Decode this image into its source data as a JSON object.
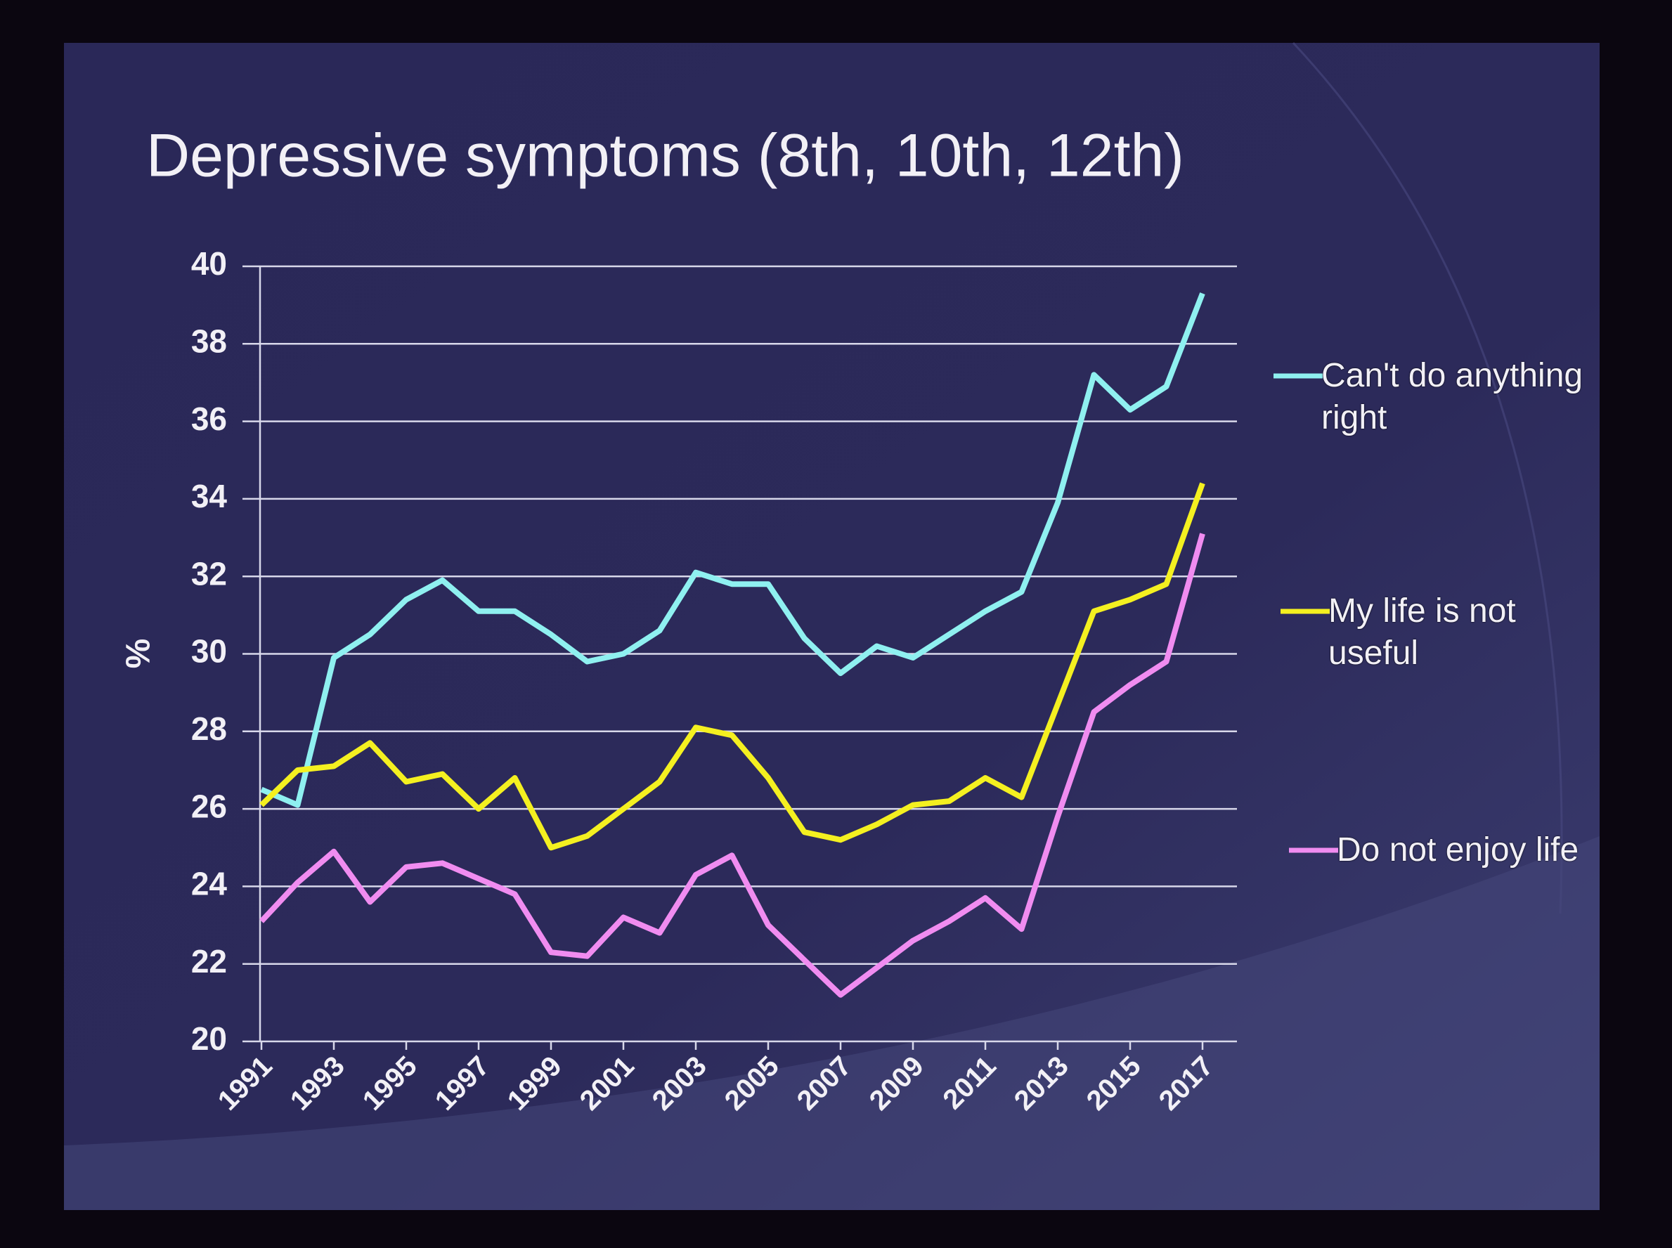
{
  "chart_data": {
    "type": "line",
    "title": "Depressive symptoms (8th, 10th, 12th)",
    "y_label": "%",
    "x": [
      1991,
      1992,
      1993,
      1994,
      1995,
      1996,
      1997,
      1998,
      1999,
      2000,
      2001,
      2002,
      2003,
      2004,
      2005,
      2006,
      2007,
      2008,
      2009,
      2010,
      2011,
      2012,
      2013,
      2014,
      2015,
      2016,
      2017
    ],
    "xlim": [
      1991,
      2017
    ],
    "xticks": [
      1991,
      1993,
      1995,
      1997,
      1999,
      2001,
      2003,
      2005,
      2007,
      2009,
      2011,
      2013,
      2015,
      2017
    ],
    "ylim": [
      20,
      40
    ],
    "yticks": [
      20,
      22,
      24,
      26,
      28,
      30,
      32,
      34,
      36,
      38,
      40
    ],
    "grid": true,
    "series": [
      {
        "name": "Can't do anything right",
        "color": "#8ff0f0",
        "values": [
          26.5,
          26.1,
          29.9,
          30.5,
          31.4,
          31.9,
          31.1,
          31.1,
          30.5,
          29.8,
          30.0,
          30.6,
          32.1,
          31.8,
          31.8,
          30.4,
          29.5,
          30.2,
          29.9,
          30.5,
          31.1,
          31.6,
          33.9,
          37.2,
          36.3,
          36.9,
          39.3
        ]
      },
      {
        "name": "My life is not useful",
        "color": "#f4f020",
        "values": [
          26.1,
          27.0,
          27.1,
          27.7,
          26.7,
          26.9,
          26.0,
          26.8,
          25.0,
          25.3,
          26.0,
          26.7,
          28.1,
          27.9,
          26.8,
          25.4,
          25.2,
          25.6,
          26.1,
          26.2,
          26.8,
          26.3,
          28.7,
          31.1,
          31.4,
          31.8,
          34.4
        ]
      },
      {
        "name": "Do not enjoy life",
        "color": "#f08cf0",
        "values": [
          23.1,
          24.1,
          24.9,
          23.6,
          24.5,
          24.6,
          24.2,
          23.8,
          22.3,
          22.2,
          23.2,
          22.8,
          24.3,
          24.8,
          23.0,
          22.1,
          21.2,
          21.9,
          22.6,
          23.1,
          23.7,
          22.9,
          25.8,
          28.5,
          29.2,
          29.8,
          33.1
        ]
      }
    ]
  }
}
